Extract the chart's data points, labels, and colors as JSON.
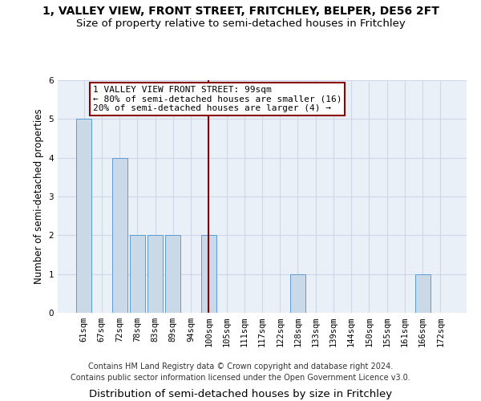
{
  "title": "1, VALLEY VIEW, FRONT STREET, FRITCHLEY, BELPER, DE56 2FT",
  "subtitle": "Size of property relative to semi-detached houses in Fritchley",
  "xlabel": "Distribution of semi-detached houses by size in Fritchley",
  "ylabel": "Number of semi-detached properties",
  "footer1": "Contains HM Land Registry data © Crown copyright and database right 2024.",
  "footer2": "Contains public sector information licensed under the Open Government Licence v3.0.",
  "categories": [
    "61sqm",
    "67sqm",
    "72sqm",
    "78sqm",
    "83sqm",
    "89sqm",
    "94sqm",
    "100sqm",
    "105sqm",
    "111sqm",
    "117sqm",
    "122sqm",
    "128sqm",
    "133sqm",
    "139sqm",
    "144sqm",
    "150sqm",
    "155sqm",
    "161sqm",
    "166sqm",
    "172sqm"
  ],
  "values": [
    5,
    0,
    4,
    2,
    2,
    2,
    0,
    2,
    0,
    0,
    0,
    0,
    1,
    0,
    0,
    0,
    0,
    0,
    0,
    1,
    0
  ],
  "highlight_index": 7,
  "bar_color": "#c9d9e8",
  "bar_edgecolor": "#5b9bd5",
  "highlight_line_color": "#8b0000",
  "annotation_text": "1 VALLEY VIEW FRONT STREET: 99sqm\n← 80% of semi-detached houses are smaller (16)\n20% of semi-detached houses are larger (4) →",
  "annotation_box_edgecolor": "#8b0000",
  "ylim": [
    0,
    6
  ],
  "yticks": [
    0,
    1,
    2,
    3,
    4,
    5,
    6
  ],
  "grid_color": "#d0d8e8",
  "background_color": "#eaf0f8",
  "title_fontsize": 10,
  "subtitle_fontsize": 9.5,
  "xlabel_fontsize": 9.5,
  "ylabel_fontsize": 8.5,
  "tick_fontsize": 7.5,
  "annotation_fontsize": 8,
  "footer_fontsize": 7
}
